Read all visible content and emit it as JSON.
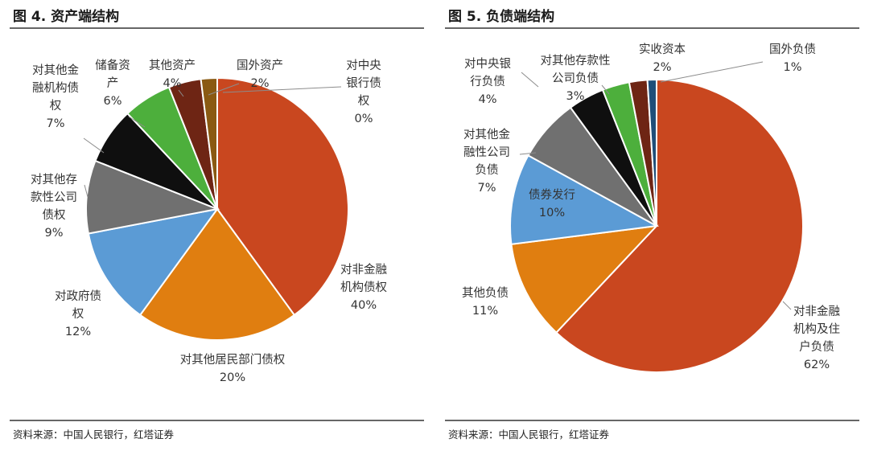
{
  "charts_meta": {
    "left": {
      "title": "图 4. 资产端结构",
      "source": "资料来源：中国人民银行，红塔证券"
    },
    "right": {
      "title": "图 5. 负债端结构",
      "source": "资料来源：中国人民银行，红塔证券"
    }
  },
  "chart_data": [
    {
      "type": "pie",
      "title": "图 4. 资产端结构",
      "start_angle_deg": 0,
      "slices": [
        {
          "label": "对非金融机构债权",
          "value": 40,
          "pct_label": "40%",
          "color": "#c9471f",
          "label_lines": [
            "对非金融",
            "机构债权",
            "40%"
          ]
        },
        {
          "label": "对其他居民部门债权",
          "value": 20,
          "pct_label": "20%",
          "color": "#e07e10",
          "label_lines": [
            "对其他居民部门债权",
            "20%"
          ]
        },
        {
          "label": "对政府债权",
          "value": 12,
          "pct_label": "12%",
          "color": "#5b9bd5",
          "label_lines": [
            "对政府债",
            "权",
            "12%"
          ]
        },
        {
          "label": "对其他存款性公司债权",
          "value": 9,
          "pct_label": "9%",
          "color": "#707070",
          "label_lines": [
            "对其他存",
            "款性公司",
            "债权",
            "9%"
          ]
        },
        {
          "label": "对其他金融机构债权",
          "value": 7,
          "pct_label": "7%",
          "color": "#0f0f0f",
          "label_lines": [
            "对其他金",
            "融机构债",
            "权",
            "7%"
          ]
        },
        {
          "label": "储备资产",
          "value": 6,
          "pct_label": "6%",
          "color": "#4daf3c",
          "label_lines": [
            "储备资",
            "产",
            "6%"
          ]
        },
        {
          "label": "其他资产",
          "value": 4,
          "pct_label": "4%",
          "color": "#6e2514",
          "label_lines": [
            "其他资产",
            "4%"
          ]
        },
        {
          "label": "国外资产",
          "value": 2,
          "pct_label": "2%",
          "color": "#8a5a12",
          "label_lines": [
            "国外资产",
            "2%"
          ]
        },
        {
          "label": "对中央银行债权",
          "value": 0,
          "pct_label": "0%",
          "color": "#1f4e79",
          "label_lines": [
            "对中央",
            "银行债",
            "权",
            "0%"
          ]
        }
      ]
    },
    {
      "type": "pie",
      "title": "图 5. 负债端结构",
      "start_angle_deg": 0,
      "slices": [
        {
          "label": "对非金融机构及住户负债",
          "value": 62,
          "pct_label": "62%",
          "color": "#c9471f",
          "label_lines": [
            "对非金融",
            "机构及住",
            "户负债",
            "62%"
          ]
        },
        {
          "label": "其他负债",
          "value": 11,
          "pct_label": "11%",
          "color": "#e07e10",
          "label_lines": [
            "其他负债",
            "11%"
          ]
        },
        {
          "label": "债券发行",
          "value": 10,
          "pct_label": "10%",
          "color": "#5b9bd5",
          "label_lines": [
            "债券发行",
            "10%"
          ]
        },
        {
          "label": "对其他金融性公司负债",
          "value": 7,
          "pct_label": "7%",
          "color": "#707070",
          "label_lines": [
            "对其他金",
            "融性公司",
            "负债",
            "7%"
          ]
        },
        {
          "label": "对中央银行负债",
          "value": 4,
          "pct_label": "4%",
          "color": "#0f0f0f",
          "label_lines": [
            "对中央银",
            "行负债",
            "4%"
          ]
        },
        {
          "label": "对其他存款性公司负债",
          "value": 3,
          "pct_label": "3%",
          "color": "#4daf3c",
          "label_lines": [
            "对其他存款性",
            "公司负债",
            "3%"
          ]
        },
        {
          "label": "实收资本",
          "value": 2,
          "pct_label": "2%",
          "color": "#6e2514",
          "label_lines": [
            "实收资本",
            "2%"
          ]
        },
        {
          "label": "国外负债",
          "value": 1,
          "pct_label": "1%",
          "color": "#1f4e79",
          "label_lines": [
            "国外负债",
            "1%"
          ]
        }
      ]
    }
  ]
}
